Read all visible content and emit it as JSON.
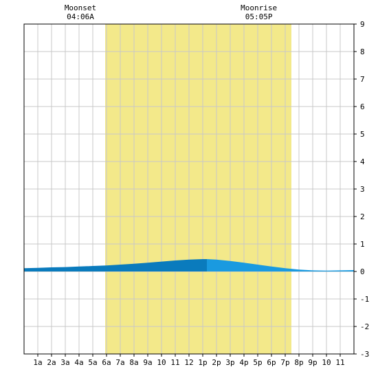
{
  "top_labels": {
    "moonset": {
      "label": "Moonset",
      "time": "04:06A"
    },
    "moonrise": {
      "label": "Moonrise",
      "time": "05:05P"
    }
  },
  "chart_data": {
    "type": "area",
    "x_unit": "hour of day",
    "xlim": [
      0,
      24
    ],
    "ylim": [
      -3,
      9
    ],
    "y_ticks": [
      9,
      8,
      7,
      6,
      5,
      4,
      3,
      2,
      1,
      0,
      -1,
      -2,
      -3
    ],
    "x_tick_labels": [
      "1a",
      "2a",
      "3a",
      "4a",
      "5a",
      "6a",
      "7a",
      "8a",
      "9a",
      "10",
      "11",
      "12",
      "1p",
      "2p",
      "3p",
      "4p",
      "5p",
      "6p",
      "7p",
      "8p",
      "9p",
      "10",
      "11"
    ],
    "grid": true,
    "daylight": {
      "start_hour": 5.9,
      "end_hour": 19.45,
      "color": "#f3e98a"
    },
    "moonset_hour": 4.1,
    "moonrise_hour": 17.083,
    "tide_colors": {
      "rising": "#0a7bbd",
      "falling": "#1a9ae0"
    },
    "high_tide_hour": 13.3,
    "tide_points": [
      {
        "x": 0,
        "y": 0.12
      },
      {
        "x": 1,
        "y": 0.13
      },
      {
        "x": 2,
        "y": 0.15
      },
      {
        "x": 3,
        "y": 0.16
      },
      {
        "x": 4,
        "y": 0.18
      },
      {
        "x": 5,
        "y": 0.2
      },
      {
        "x": 6,
        "y": 0.22
      },
      {
        "x": 7,
        "y": 0.25
      },
      {
        "x": 8,
        "y": 0.28
      },
      {
        "x": 9,
        "y": 0.32
      },
      {
        "x": 10,
        "y": 0.36
      },
      {
        "x": 11,
        "y": 0.4
      },
      {
        "x": 12,
        "y": 0.43
      },
      {
        "x": 13,
        "y": 0.45
      },
      {
        "x": 13.3,
        "y": 0.45
      },
      {
        "x": 14,
        "y": 0.43
      },
      {
        "x": 15,
        "y": 0.38
      },
      {
        "x": 16,
        "y": 0.32
      },
      {
        "x": 17,
        "y": 0.25
      },
      {
        "x": 18,
        "y": 0.18
      },
      {
        "x": 19,
        "y": 0.12
      },
      {
        "x": 20,
        "y": 0.07
      },
      {
        "x": 21,
        "y": 0.04
      },
      {
        "x": 22,
        "y": 0.03
      },
      {
        "x": 23,
        "y": 0.04
      },
      {
        "x": 24,
        "y": 0.05
      }
    ]
  }
}
